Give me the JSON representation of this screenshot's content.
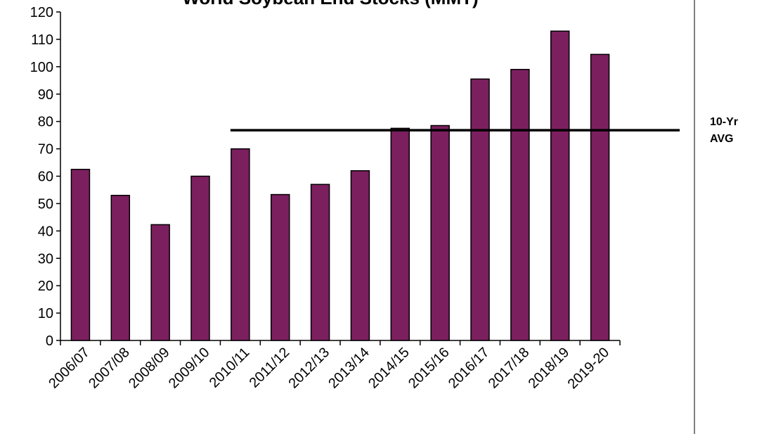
{
  "chart_data": {
    "type": "bar",
    "title": "World Soybean End Stocks (MMT)",
    "categories": [
      "2006/07",
      "2007/08",
      "2008/09",
      "2009/10",
      "2010/11",
      "2011/12",
      "2012/13",
      "2013/14",
      "2014/15",
      "2015/16",
      "2016/17",
      "2017/18",
      "2018/19",
      "2019-20"
    ],
    "values": [
      62.5,
      53,
      42.3,
      60,
      70,
      53.3,
      57,
      62,
      77.5,
      78.5,
      95.5,
      99,
      113,
      104.5
    ],
    "color": "#7b1f5f",
    "ylim": [
      0,
      120
    ],
    "yticks": [
      0,
      10,
      20,
      30,
      40,
      50,
      60,
      70,
      80,
      90,
      100,
      110,
      120
    ],
    "average": {
      "label": "10-Yr AVG",
      "value": 76.8
    }
  }
}
